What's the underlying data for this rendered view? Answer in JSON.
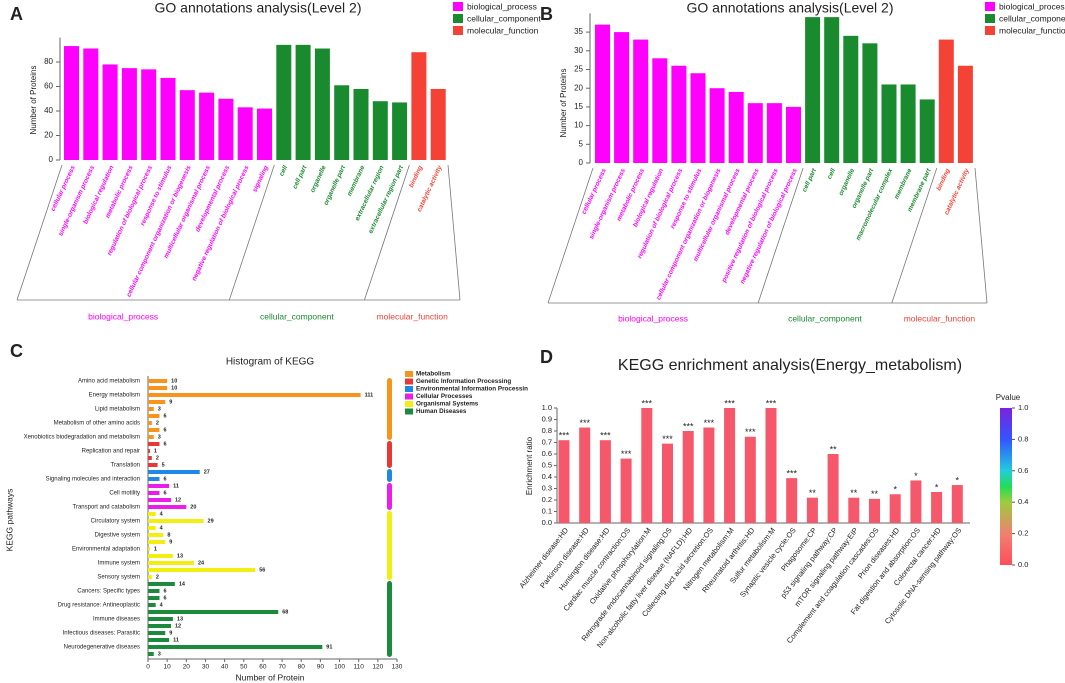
{
  "chart_data": [
    {
      "type": "bar",
      "panel": "A",
      "title": "GO annotations analysis(Level 2)",
      "ylabel": "Number of Proteins",
      "ylim": [
        0,
        100
      ],
      "yticks": [
        0,
        20,
        40,
        60,
        80
      ],
      "series": [
        {
          "name": "biological_process",
          "color": "#ff00ff",
          "categories": [
            "cellular process",
            "single-organism process",
            "biological regulation",
            "metabolic process",
            "regulation of biological process",
            "response to stimulus",
            "cellular component organization or biogenesis",
            "multicellular organismal process",
            "developmental process",
            "negative regulation of biological process",
            "signaling"
          ],
          "values": [
            93,
            91,
            78,
            75,
            74,
            67,
            57,
            55,
            50,
            43,
            42
          ]
        },
        {
          "name": "cellular_component",
          "color": "#1a8a2e",
          "categories": [
            "cell",
            "cell part",
            "organelle",
            "organelle part",
            "membrane",
            "extracellular region",
            "extracellular region part"
          ],
          "values": [
            94,
            94,
            91,
            61,
            58,
            48,
            47
          ]
        },
        {
          "name": "molecular_function",
          "color": "#f44336",
          "categories": [
            "binding",
            "catalytic activity"
          ],
          "values": [
            88,
            58
          ]
        }
      ]
    },
    {
      "type": "bar",
      "panel": "B",
      "title": "GO annotations analysis(Level 2)",
      "ylabel": "Number of Proteins",
      "ylim": [
        0,
        40
      ],
      "yticks": [
        0,
        5,
        10,
        15,
        20,
        25,
        30,
        35
      ],
      "series": [
        {
          "name": "biological_process",
          "color": "#ff00ff",
          "categories": [
            "cellular process",
            "single-organism process",
            "metabolic process",
            "biological regulation",
            "regulation of biological process",
            "response to stimulus",
            "cellular component organization or biogenesis",
            "multicellular organismal process",
            "developmental process",
            "positive regulation of biological process",
            "negative regulation of biological process"
          ],
          "values": [
            37,
            35,
            33,
            28,
            26,
            24,
            20,
            19,
            16,
            16,
            15
          ]
        },
        {
          "name": "cellular_component",
          "color": "#1a8a2e",
          "categories": [
            "cell part",
            "cell",
            "organelle",
            "organelle part",
            "macromolecular complex",
            "membrane",
            "membrane part"
          ],
          "values": [
            39,
            39,
            34,
            32,
            21,
            21,
            17
          ]
        },
        {
          "name": "molecular_function",
          "color": "#f44336",
          "categories": [
            "binding",
            "catalytic activity"
          ],
          "values": [
            33,
            26
          ]
        }
      ]
    },
    {
      "type": "barh",
      "panel": "C",
      "title": "Histogram of KEGG",
      "xlabel": "Number of Protein",
      "ylabel": "KEGG pathways",
      "xlim": [
        0,
        130
      ],
      "xticks": [
        0,
        10,
        20,
        30,
        40,
        50,
        60,
        70,
        80,
        90,
        100,
        110,
        120,
        130
      ],
      "series": [
        {
          "name": "Metabolism",
          "color": "#f7941d",
          "categories": [
            "Amino acid metabolism",
            null,
            "Energy metabolism",
            null,
            "Lipid metabolism",
            null,
            "Metabolism of other amino acids",
            null,
            "Xenobiotics biodegradation and metabolism"
          ],
          "values": [
            10,
            10,
            111,
            9,
            3,
            6,
            2,
            6,
            3
          ]
        },
        {
          "name": "Genetic Information Processing",
          "color": "#e53935",
          "categories": [
            null,
            "Replication and repair",
            null,
            "Translation"
          ],
          "values": [
            6,
            1,
            2,
            5
          ]
        },
        {
          "name": "Environmental Information Processin",
          "color": "#1e88e5",
          "categories": [
            null,
            "Signaling molecules and interaction"
          ],
          "values": [
            27,
            6
          ]
        },
        {
          "name": "Cellular Processes",
          "color": "#e91ee9",
          "categories": [
            null,
            "Cell motility",
            null,
            "Transport and catabolism"
          ],
          "values": [
            11,
            6,
            12,
            20
          ]
        },
        {
          "name": "Organismal Systems",
          "color": "#f2ee12",
          "categories": [
            null,
            "Circulatory system",
            null,
            "Digestive system",
            null,
            "Environmental adaptation",
            null,
            "Immune system",
            null,
            "Sensory system"
          ],
          "values": [
            4,
            29,
            4,
            8,
            9,
            1,
            13,
            24,
            56,
            2
          ]
        },
        {
          "name": "Human Diseases",
          "color": "#1b8a3c",
          "categories": [
            null,
            "Cancers: Specific types",
            null,
            "Drug resistance: Antineoplastic",
            null,
            "Immune diseases",
            null,
            "Infectious diseases: Parasitic",
            null,
            "Neurodegenerative diseases",
            null
          ],
          "values": [
            14,
            6,
            6,
            4,
            68,
            13,
            12,
            9,
            11,
            91,
            3
          ]
        }
      ]
    },
    {
      "type": "bar",
      "panel": "D",
      "title": "KEGG enrichment analysis(Energy_metabolism)",
      "ylabel": "Enrichment ratio",
      "ylim": [
        0,
        1.0
      ],
      "yticks": [
        {
          "value": 0,
          "label": "0.0"
        },
        0.1,
        0.2,
        0.3,
        0.4,
        0.5,
        0.6,
        0.7,
        0.8,
        0.9,
        {
          "value": 1,
          "label": "1.0"
        }
      ],
      "color": "#f5586a",
      "categories": [
        "Alzheimer disease:HD",
        "Parkinson disease:HD",
        "Huntington disease:HD",
        "Cardiac muscle contraction:OS",
        "Oxidative phosphorylation:M",
        "Retrograde endocannabinoid signaling:OS",
        "Non-alcoholic fatty liver disease (NAFLD):HD",
        "Collecting duct acid secretion:OS",
        "Nitrogen metabolism:M",
        "Rheumatoid arthritis:HD",
        "Sulfur metabolism:M",
        "Synaptic vesicle cycle:OS",
        "Phagosome:CP",
        "p53 signaling pathway:CP",
        "mTOR signaling pathway:EIP",
        "Complement and coagulation cascades:OS",
        "Prion diseases:HD",
        "Fat digestion and absorption:OS",
        "Colorectal cancer:HD",
        "Cytosolic DNA-sensing pathway:OS"
      ],
      "values": [
        0.72,
        0.83,
        0.72,
        0.56,
        1.0,
        0.69,
        0.8,
        0.83,
        1.0,
        0.75,
        1.0,
        0.39,
        0.22,
        0.6,
        0.22,
        0.21,
        0.25,
        0.37,
        0.27,
        0.33
      ],
      "significance": [
        "***",
        "***",
        "***",
        "***",
        "***",
        "***",
        "***",
        "***",
        "***",
        "***",
        "***",
        "***",
        "**",
        "**",
        "**",
        "**",
        "*",
        "*",
        "*",
        "*"
      ],
      "colorbar": {
        "title": "Pvalue",
        "lim": [
          0,
          1
        ],
        "ticks": [
          {
            "value": 0,
            "label": "0.0"
          },
          0.2,
          0.4,
          0.6,
          0.8,
          {
            "value": 1,
            "label": "1.0"
          }
        ]
      }
    }
  ]
}
